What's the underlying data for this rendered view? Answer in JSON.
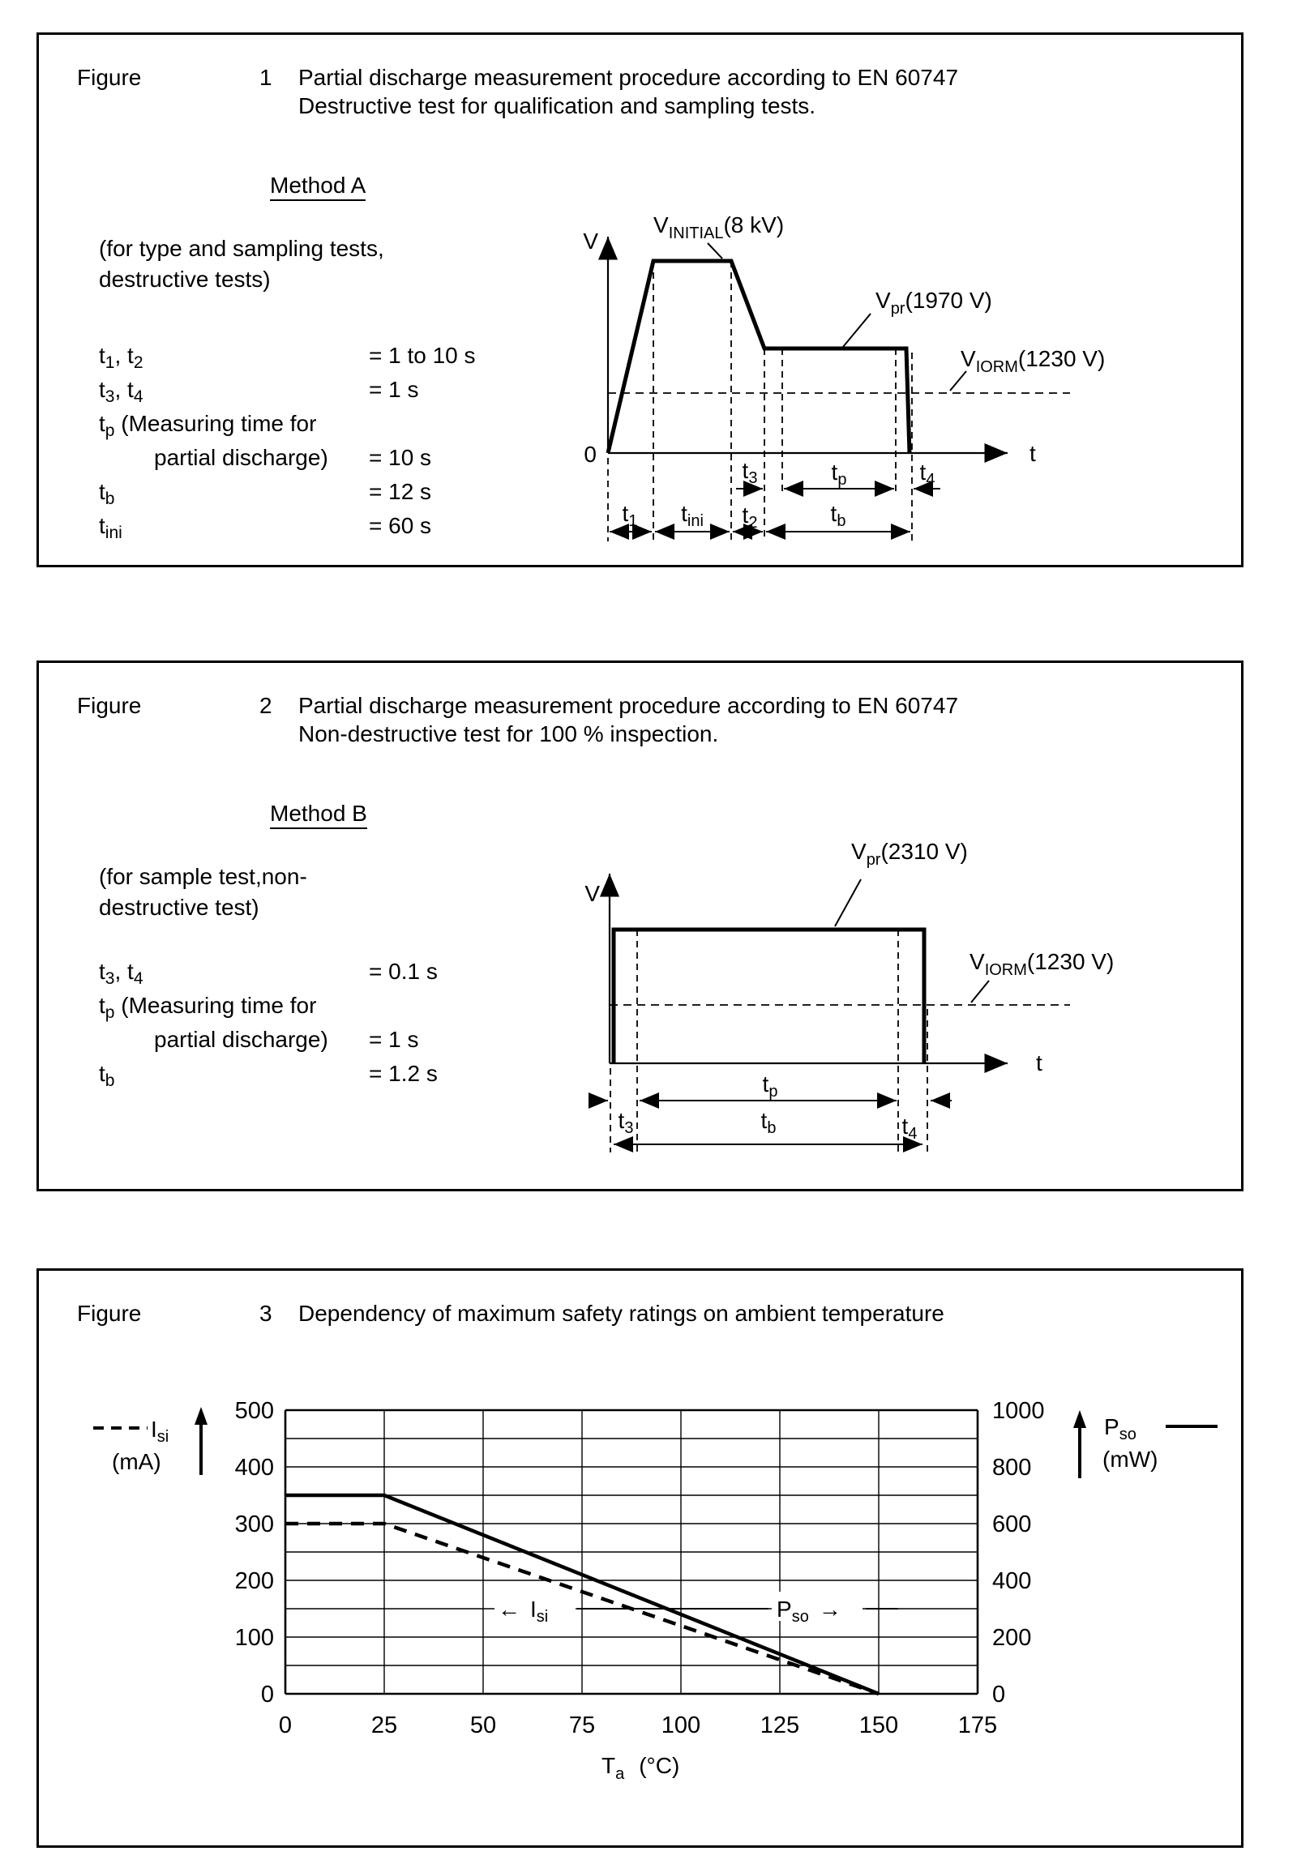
{
  "page": {
    "background": "#ffffff",
    "ink": "#000000"
  },
  "figure1": {
    "label": "Figure",
    "number": "1",
    "title_line1": "Partial discharge measurement procedure according to EN 60747",
    "title_line2": "Destructive test for qualification and sampling tests.",
    "method": "Method A",
    "scope_line1": "(for type and sampling tests,",
    "scope_line2": "destructive tests)",
    "params": [
      {
        "a": "t",
        "b": "1",
        "c": ", t",
        "d": "2",
        "value": "= 1 to 10 s"
      },
      {
        "a": "t",
        "b": "3",
        "c": ", t",
        "d": "4",
        "value": "= 1 s"
      },
      {
        "a": "t",
        "b": "p",
        "c": " (Measuring time for",
        "value": ""
      },
      {
        "a": "partial discharge)",
        "value": "= 10 s"
      },
      {
        "a": "t",
        "b": "b",
        "value": "= 12 s"
      },
      {
        "a": "t",
        "b": "ini",
        "value": "= 60 s"
      }
    ],
    "diagram": {
      "v_axis": "V",
      "t_axis": "t",
      "zero": "0",
      "vinitial": {
        "base": "V",
        "sub": "INITIAL",
        "val": "(8 kV)"
      },
      "vpr": {
        "base": "V",
        "sub": "pr",
        "val": "(1970 V)"
      },
      "viorm": {
        "base": "V",
        "sub": "IORM",
        "val": "(1230 V)"
      },
      "t1": {
        "base": "t",
        "sub": "1"
      },
      "tini": {
        "base": "t",
        "sub": "ini"
      },
      "t2": {
        "base": "t",
        "sub": "2"
      },
      "t3": {
        "base": "t",
        "sub": "3"
      },
      "tp": {
        "base": "t",
        "sub": "p"
      },
      "t4": {
        "base": "t",
        "sub": "4"
      },
      "tb": {
        "base": "t",
        "sub": "b"
      }
    }
  },
  "figure2": {
    "label": "Figure",
    "number": "2",
    "title_line1": "Partial discharge measurement procedure according to EN 60747",
    "title_line2": "Non-destructive test for 100 % inspection.",
    "method": "Method B",
    "scope_line1": "(for sample test,non-",
    "scope_line2": "destructive test)",
    "params": [
      {
        "a": "t",
        "b": "3",
        "c": ", t",
        "d": "4",
        "value": "= 0.1 s"
      },
      {
        "a": "t",
        "b": "p",
        "c": " (Measuring time for",
        "value": ""
      },
      {
        "a": "partial discharge)",
        "value": "= 1 s"
      },
      {
        "a": "t",
        "b": "b",
        "value": "= 1.2 s"
      }
    ],
    "diagram": {
      "v_axis": "V",
      "t_axis": "t",
      "vpr": {
        "base": "V",
        "sub": "pr",
        "val": "(2310 V)"
      },
      "viorm": {
        "base": "V",
        "sub": "IORM",
        "val": "(1230 V)"
      },
      "t3": {
        "base": "t",
        "sub": "3"
      },
      "tp": {
        "base": "t",
        "sub": "p"
      },
      "t4": {
        "base": "t",
        "sub": "4"
      },
      "tb": {
        "base": "t",
        "sub": "b"
      }
    }
  },
  "figure3": {
    "label": "Figure",
    "number": "3",
    "title": "Dependency of maximum safety ratings on ambient temperature"
  },
  "chart_data": {
    "type": "line",
    "title": "Dependency of maximum safety ratings on ambient temperature",
    "x_axis": {
      "label_base": "T",
      "label_sub": "a",
      "label_unit": "(°C)",
      "range": [
        0,
        175
      ],
      "ticks": [
        0,
        25,
        50,
        75,
        100,
        125,
        150,
        175
      ],
      "grid_step": 25
    },
    "left_axis": {
      "name_base": "I",
      "name_sub": "si",
      "unit": "(mA)",
      "range": [
        0,
        500
      ],
      "ticks": [
        500,
        400,
        300,
        200,
        100,
        0
      ],
      "grid_step": 50
    },
    "right_axis": {
      "name_base": "P",
      "name_sub": "so",
      "unit": "(mW)",
      "range": [
        0,
        1000
      ],
      "ticks": [
        1000,
        800,
        600,
        400,
        200,
        0
      ]
    },
    "series": [
      {
        "name": "Isi",
        "axis": "left",
        "style": "dashed",
        "points": [
          [
            0,
            300
          ],
          [
            25,
            300
          ],
          [
            150,
            0
          ]
        ]
      },
      {
        "name": "Pso",
        "axis": "right",
        "style": "solid",
        "points": [
          [
            0,
            700
          ],
          [
            25,
            700
          ],
          [
            150,
            0
          ]
        ]
      }
    ],
    "annotations": {
      "isi": {
        "arrow": "←",
        "base": "I",
        "sub": "si"
      },
      "pso": {
        "base": "P",
        "sub": "so",
        "arrow": "→"
      }
    },
    "grid": "on",
    "legend_position": "top-left-and-top-right"
  }
}
